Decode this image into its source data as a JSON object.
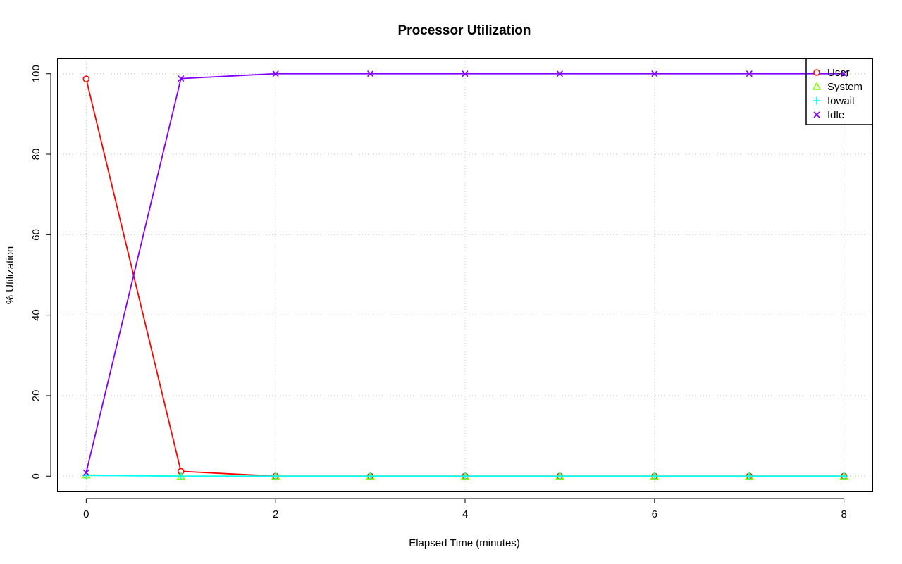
{
  "chart_data": {
    "type": "line",
    "title": "Processor Utilization",
    "xlabel": "Elapsed Time (minutes)",
    "ylabel": "% Utilization",
    "xlim": [
      -0.3,
      8.3
    ],
    "ylim": [
      -3.8,
      103.8
    ],
    "x_ticks": [
      0,
      2,
      4,
      6,
      8
    ],
    "y_ticks": [
      0,
      20,
      40,
      60,
      80,
      100
    ],
    "grid": true,
    "legend_position": "top-right",
    "x": [
      0,
      1,
      2,
      3,
      4,
      5,
      6,
      7,
      8
    ],
    "series": [
      {
        "name": "User",
        "color": "#ff0000",
        "marker": "circle",
        "values": [
          98.7,
          1.2,
          0,
          0,
          0,
          0,
          0,
          0,
          0
        ]
      },
      {
        "name": "System",
        "color": "#80ff00",
        "marker": "triangle",
        "values": [
          0.3,
          0,
          0,
          0,
          0,
          0,
          0,
          0,
          0
        ]
      },
      {
        "name": "Iowait",
        "color": "#00ffff",
        "marker": "plus",
        "values": [
          0.2,
          0,
          0,
          0,
          0,
          0,
          0,
          0,
          0
        ]
      },
      {
        "name": "Idle",
        "color": "#8000ff",
        "marker": "x",
        "values": [
          0.9,
          98.8,
          100,
          100,
          100,
          100,
          100,
          100,
          100
        ]
      }
    ]
  }
}
